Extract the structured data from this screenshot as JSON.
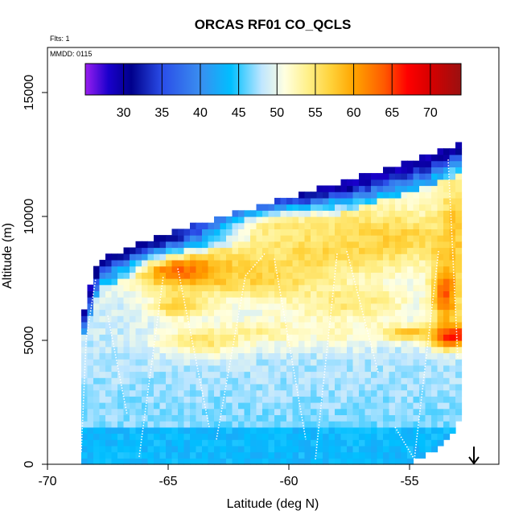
{
  "chart_data": {
    "type": "heatmap",
    "title": "ORCAS RF01 CO_QCLS",
    "flights_label": "Flts: 1",
    "date_label": "MMDD: 0115",
    "xlabel": "Latitude (deg N)",
    "ylabel": "Altitude (m)",
    "xlim": [
      -70,
      -52
    ],
    "ylim": [
      0,
      17000
    ],
    "x_ticks": [
      -70,
      -65,
      -60,
      -55
    ],
    "y_ticks": [
      0,
      5000,
      10000,
      15000
    ],
    "colorbar": {
      "ticks": [
        30,
        35,
        40,
        45,
        50,
        55,
        60,
        65,
        70
      ],
      "range": [
        25,
        74
      ],
      "stops": [
        {
          "v": 25,
          "c": "#9a1ef0"
        },
        {
          "v": 28,
          "c": "#1a00cc"
        },
        {
          "v": 31,
          "c": "#00008b"
        },
        {
          "v": 35,
          "c": "#2a4de8"
        },
        {
          "v": 40,
          "c": "#3a8ef0"
        },
        {
          "v": 44,
          "c": "#00bfff"
        },
        {
          "v": 48,
          "c": "#bfe6ff"
        },
        {
          "v": 51,
          "c": "#ffffe0"
        },
        {
          "v": 54,
          "c": "#fff08a"
        },
        {
          "v": 57,
          "c": "#ffd23a"
        },
        {
          "v": 60,
          "c": "#ffa500"
        },
        {
          "v": 64,
          "c": "#ff5a00"
        },
        {
          "v": 67,
          "c": "#ff0000"
        },
        {
          "v": 70,
          "c": "#d60000"
        },
        {
          "v": 74,
          "c": "#9a1010"
        }
      ]
    },
    "domain": {
      "lat_min": -68.6,
      "lat_max": -52.9,
      "top_alt": [
        {
          "lat": -68.6,
          "alt": 5800
        },
        {
          "lat": -68.2,
          "alt": 7200
        },
        {
          "lat": -67.8,
          "alt": 8200
        },
        {
          "lat": -65.0,
          "alt": 9200
        },
        {
          "lat": -62.0,
          "alt": 10100
        },
        {
          "lat": -58.0,
          "alt": 11200
        },
        {
          "lat": -55.0,
          "alt": 12100
        },
        {
          "lat": -52.9,
          "alt": 12800
        }
      ],
      "bottom_alt": [
        {
          "lat": -68.6,
          "alt": 0
        },
        {
          "lat": -55.0,
          "alt": 0
        },
        {
          "lat": -54.0,
          "alt": 500
        },
        {
          "lat": -53.0,
          "alt": 1500
        },
        {
          "lat": -52.9,
          "alt": 2000
        }
      ]
    },
    "features": [
      {
        "lat": -64.0,
        "alt": 7800,
        "dlat": 2.2,
        "dalt": 700,
        "value": 66
      },
      {
        "lat": -61.0,
        "alt": 7600,
        "dlat": 3.0,
        "dalt": 900,
        "value": 57
      },
      {
        "lat": -58.5,
        "alt": 8600,
        "dlat": 3.5,
        "dalt": 900,
        "value": 56
      },
      {
        "lat": -56.0,
        "alt": 9200,
        "dlat": 3.5,
        "dalt": 1000,
        "value": 57
      },
      {
        "lat": -60.0,
        "alt": 9600,
        "dlat": 3.0,
        "dalt": 800,
        "value": 55
      },
      {
        "lat": -57.5,
        "alt": 6500,
        "dlat": 2.5,
        "dalt": 800,
        "value": 55
      },
      {
        "lat": -64.5,
        "alt": 6400,
        "dlat": 1.2,
        "dalt": 500,
        "value": 58
      },
      {
        "lat": -63.5,
        "alt": 5000,
        "dlat": 2.0,
        "dalt": 600,
        "value": 55
      },
      {
        "lat": -61.0,
        "alt": 5400,
        "dlat": 1.8,
        "dalt": 500,
        "value": 54
      },
      {
        "lat": -58.0,
        "alt": 5400,
        "dlat": 2.5,
        "dalt": 700,
        "value": 52
      },
      {
        "lat": -53.3,
        "alt": 5200,
        "dlat": 0.8,
        "dalt": 500,
        "value": 70
      },
      {
        "lat": -53.5,
        "alt": 7000,
        "dlat": 0.6,
        "dalt": 1500,
        "value": 64
      },
      {
        "lat": -53.2,
        "alt": 9500,
        "dlat": 0.5,
        "dalt": 1800,
        "value": 58
      },
      {
        "lat": -55.0,
        "alt": 5300,
        "dlat": 1.2,
        "dalt": 300,
        "value": 58
      }
    ],
    "profiles": [
      [
        [
          -68.6,
          500
        ],
        [
          -68.4,
          5000
        ],
        [
          -68.0,
          7500
        ]
      ],
      [
        [
          -67.5,
          6000
        ],
        [
          -66.7,
          2000
        ]
      ],
      [
        [
          -66.2,
          300
        ],
        [
          -65.2,
          7600
        ]
      ],
      [
        [
          -64.6,
          7900
        ],
        [
          -63.3,
          1500
        ]
      ],
      [
        [
          -63.0,
          1000
        ],
        [
          -61.8,
          7600
        ],
        [
          -61.0,
          8500
        ]
      ],
      [
        [
          -60.6,
          8300
        ],
        [
          -59.3,
          1000
        ]
      ],
      [
        [
          -58.9,
          200
        ],
        [
          -58.0,
          8500
        ]
      ],
      [
        [
          -57.6,
          8600
        ],
        [
          -56.3,
          3700
        ]
      ],
      [
        [
          -55.6,
          1500
        ],
        [
          -54.8,
          200
        ]
      ],
      [
        [
          -54.8,
          200
        ],
        [
          -53.8,
          8600
        ]
      ],
      [
        [
          -53.4,
          12300
        ],
        [
          -53.0,
          4300
        ]
      ]
    ]
  }
}
